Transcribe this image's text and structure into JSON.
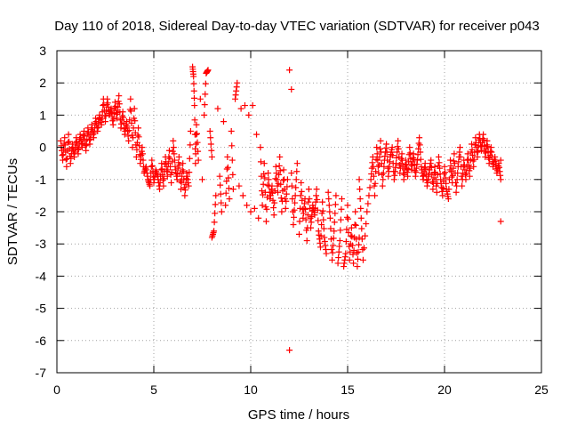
{
  "chart_data": {
    "type": "scatter",
    "title": "Day 110 of 2018, Sidereal Day-to-day VTEC variation (SDTVAR) for receiver p043",
    "xlabel": "GPS time / hours",
    "ylabel": "SDTVAR / TECUs",
    "xlim": [
      0,
      25
    ],
    "ylim": [
      -7,
      3
    ],
    "xticks": [
      0,
      5,
      10,
      15,
      20,
      25
    ],
    "yticks": [
      -7,
      -6,
      -5,
      -4,
      -3,
      -2,
      -1,
      0,
      1,
      2,
      3
    ],
    "grid": true,
    "marker": "+",
    "color": "#ff0000",
    "series": [
      {
        "name": "p043",
        "points": [
          [
            0.2,
            0.2
          ],
          [
            0.3,
            -0.4
          ],
          [
            0.4,
            0.3
          ],
          [
            0.5,
            -0.6
          ],
          [
            0.6,
            0.4
          ],
          [
            0.7,
            -0.5
          ],
          [
            0.8,
            0.1
          ],
          [
            0.9,
            -0.3
          ],
          [
            1.0,
            0.3
          ],
          [
            1.1,
            -0.2
          ],
          [
            1.2,
            0.4
          ],
          [
            1.3,
            0.0
          ],
          [
            1.4,
            0.5
          ],
          [
            1.5,
            -0.1
          ],
          [
            1.6,
            0.6
          ],
          [
            1.7,
            0.1
          ],
          [
            1.8,
            0.7
          ],
          [
            1.9,
            0.3
          ],
          [
            2.0,
            0.9
          ],
          [
            2.1,
            0.5
          ],
          [
            2.2,
            1.0
          ],
          [
            2.3,
            0.7
          ],
          [
            2.4,
            1.5
          ],
          [
            2.5,
            0.8
          ],
          [
            2.6,
            1.5
          ],
          [
            2.7,
            1.0
          ],
          [
            2.8,
            1.2
          ],
          [
            2.9,
            0.7
          ],
          [
            3.0,
            1.4
          ],
          [
            3.1,
            0.9
          ],
          [
            3.2,
            1.6
          ],
          [
            3.3,
            0.6
          ],
          [
            3.4,
            1.1
          ],
          [
            3.5,
            0.4
          ],
          [
            3.6,
            0.8
          ],
          [
            3.7,
            0.2
          ],
          [
            3.8,
            1.5
          ],
          [
            3.9,
            0.0
          ],
          [
            4.0,
            1.2
          ],
          [
            4.1,
            -0.3
          ],
          [
            4.2,
            0.6
          ],
          [
            4.3,
            -0.5
          ],
          [
            4.4,
            0.0
          ],
          [
            4.5,
            -0.8
          ],
          [
            4.6,
            -0.6
          ],
          [
            4.7,
            -1.0
          ],
          [
            4.8,
            -1.2
          ],
          [
            4.9,
            -0.4
          ],
          [
            5.0,
            -1.1
          ],
          [
            5.1,
            -0.7
          ],
          [
            5.2,
            -0.9
          ],
          [
            5.3,
            -1.3
          ],
          [
            5.4,
            -0.5
          ],
          [
            5.5,
            -1.2
          ],
          [
            5.6,
            -0.3
          ],
          [
            5.7,
            -0.9
          ],
          [
            5.8,
            -0.1
          ],
          [
            5.9,
            -1.1
          ],
          [
            6.0,
            0.2
          ],
          [
            6.1,
            -0.6
          ],
          [
            6.2,
            -1.0
          ],
          [
            6.3,
            -0.3
          ],
          [
            6.4,
            -1.3
          ],
          [
            6.5,
            -0.5
          ],
          [
            6.6,
            -1.5
          ],
          [
            6.7,
            -0.8
          ],
          [
            6.8,
            -1.2
          ],
          [
            6.9,
            0.5
          ],
          [
            7.0,
            2.5
          ],
          [
            7.05,
            2.2
          ],
          [
            7.1,
            1.3
          ],
          [
            7.15,
            -0.5
          ],
          [
            7.2,
            0.7
          ],
          [
            7.3,
            -0.4
          ],
          [
            7.4,
            1.5
          ],
          [
            7.5,
            -1.0
          ],
          [
            7.6,
            1.0
          ],
          [
            7.7,
            2.3
          ],
          [
            7.8,
            2.4
          ],
          [
            7.9,
            0.5
          ],
          [
            8.0,
            -0.3
          ],
          [
            8.0,
            -2.8
          ],
          [
            8.1,
            -2.6
          ],
          [
            8.2,
            -1.5
          ],
          [
            8.3,
            1.2
          ],
          [
            8.4,
            -0.9
          ],
          [
            8.5,
            -2.0
          ],
          [
            8.6,
            0.8
          ],
          [
            8.7,
            -1.8
          ],
          [
            8.8,
            -0.3
          ],
          [
            8.9,
            -1.6
          ],
          [
            9.0,
            0.5
          ],
          [
            9.1,
            -1.3
          ],
          [
            9.2,
            1.5
          ],
          [
            9.3,
            2.0
          ],
          [
            9.4,
            -1.2
          ],
          [
            9.5,
            1.2
          ],
          [
            9.6,
            -1.5
          ],
          [
            9.7,
            1.3
          ],
          [
            9.8,
            -1.8
          ],
          [
            9.9,
            1.0
          ],
          [
            10.0,
            -2.0
          ],
          [
            10.1,
            1.3
          ],
          [
            10.2,
            -1.9
          ],
          [
            10.3,
            0.4
          ],
          [
            10.4,
            -2.2
          ],
          [
            10.5,
            0.0
          ],
          [
            10.6,
            -1.8
          ],
          [
            10.7,
            -0.5
          ],
          [
            10.8,
            -2.3
          ],
          [
            10.9,
            -0.8
          ],
          [
            11.0,
            -1.6
          ],
          [
            11.1,
            -1.2
          ],
          [
            11.2,
            -2.1
          ],
          [
            11.3,
            -0.6
          ],
          [
            11.4,
            -1.4
          ],
          [
            11.5,
            -0.3
          ],
          [
            11.6,
            -2.0
          ],
          [
            11.7,
            -0.7
          ],
          [
            11.8,
            -1.9
          ],
          [
            11.9,
            -1.0
          ],
          [
            12.0,
            2.4
          ],
          [
            12.0,
            -6.3
          ],
          [
            12.1,
            1.8
          ],
          [
            12.1,
            -0.8
          ],
          [
            12.2,
            -2.4
          ],
          [
            12.3,
            -1.5
          ],
          [
            12.4,
            -0.5
          ],
          [
            12.5,
            -2.7
          ],
          [
            12.6,
            -1.1
          ],
          [
            12.7,
            -2.2
          ],
          [
            12.8,
            -1.6
          ],
          [
            12.9,
            -2.9
          ],
          [
            13.0,
            -1.3
          ],
          [
            13.1,
            -2.5
          ],
          [
            13.2,
            -1.8
          ],
          [
            13.3,
            -2.1
          ],
          [
            13.4,
            -1.3
          ],
          [
            13.5,
            -2.6
          ],
          [
            13.6,
            -3.1
          ],
          [
            13.7,
            -1.7
          ],
          [
            13.8,
            -2.8
          ],
          [
            13.9,
            -3.3
          ],
          [
            14.0,
            -1.4
          ],
          [
            14.1,
            -2.2
          ],
          [
            14.2,
            -3.5
          ],
          [
            14.3,
            -2.6
          ],
          [
            14.4,
            -1.5
          ],
          [
            14.5,
            -3.6
          ],
          [
            14.6,
            -2.9
          ],
          [
            14.7,
            -1.6
          ],
          [
            14.8,
            -3.7
          ],
          [
            14.9,
            -3.3
          ],
          [
            15.0,
            -1.8
          ],
          [
            15.1,
            -3.5
          ],
          [
            15.2,
            -2.5
          ],
          [
            15.3,
            -3.6
          ],
          [
            15.4,
            -2.0
          ],
          [
            15.5,
            -3.7
          ],
          [
            15.6,
            -2.8
          ],
          [
            15.6,
            -1.0
          ],
          [
            15.7,
            -2.2
          ],
          [
            15.8,
            -3.5
          ],
          [
            16.0,
            -2.0
          ],
          [
            16.2,
            -1.0
          ],
          [
            16.3,
            -0.3
          ],
          [
            16.4,
            -1.5
          ],
          [
            16.5,
            0.0
          ],
          [
            16.6,
            -0.8
          ],
          [
            16.7,
            0.2
          ],
          [
            16.8,
            -1.2
          ],
          [
            16.9,
            -0.4
          ],
          [
            17.0,
            0.1
          ],
          [
            17.1,
            -0.9
          ],
          [
            17.2,
            -0.3
          ],
          [
            17.3,
            0.0
          ],
          [
            17.4,
            -1.0
          ],
          [
            17.5,
            -0.5
          ],
          [
            17.6,
            0.2
          ],
          [
            17.7,
            -0.8
          ],
          [
            17.8,
            -0.2
          ],
          [
            17.9,
            -1.0
          ],
          [
            18.0,
            -0.4
          ],
          [
            18.1,
            -0.9
          ],
          [
            18.2,
            0.0
          ],
          [
            18.3,
            -0.7
          ],
          [
            18.4,
            -0.2
          ],
          [
            18.5,
            -0.9
          ],
          [
            18.6,
            -0.4
          ],
          [
            18.7,
            0.3
          ],
          [
            18.8,
            -0.6
          ],
          [
            18.9,
            -1.0
          ],
          [
            19.0,
            -0.5
          ],
          [
            19.1,
            -1.2
          ],
          [
            19.2,
            -0.8
          ],
          [
            19.3,
            -0.4
          ],
          [
            19.4,
            -1.3
          ],
          [
            19.5,
            -0.6
          ],
          [
            19.6,
            -1.4
          ],
          [
            19.7,
            -0.3
          ],
          [
            19.8,
            -1.0
          ],
          [
            19.9,
            -1.5
          ],
          [
            20.0,
            -0.6
          ],
          [
            20.1,
            -1.3
          ],
          [
            20.2,
            -1.6
          ],
          [
            20.3,
            -0.4
          ],
          [
            20.4,
            -1.1
          ],
          [
            20.5,
            -0.2
          ],
          [
            20.6,
            -1.4
          ],
          [
            20.7,
            -0.6
          ],
          [
            20.8,
            0.0
          ],
          [
            20.9,
            -1.2
          ],
          [
            21.0,
            -0.4
          ],
          [
            21.1,
            -1.0
          ],
          [
            21.2,
            -0.2
          ],
          [
            21.3,
            -0.9
          ],
          [
            21.4,
            0.1
          ],
          [
            21.5,
            -0.6
          ],
          [
            21.6,
            0.3
          ],
          [
            21.7,
            -0.3
          ],
          [
            21.8,
            0.4
          ],
          [
            21.9,
            -0.1
          ],
          [
            22.0,
            0.4
          ],
          [
            22.1,
            -0.3
          ],
          [
            22.2,
            0.2
          ],
          [
            22.3,
            -0.5
          ],
          [
            22.4,
            0.0
          ],
          [
            22.5,
            -0.6
          ],
          [
            22.6,
            -0.3
          ],
          [
            22.7,
            -0.8
          ],
          [
            22.8,
            -0.5
          ],
          [
            22.9,
            -1.0
          ],
          [
            22.9,
            -0.4
          ],
          [
            22.9,
            -2.3
          ]
        ]
      }
    ]
  }
}
